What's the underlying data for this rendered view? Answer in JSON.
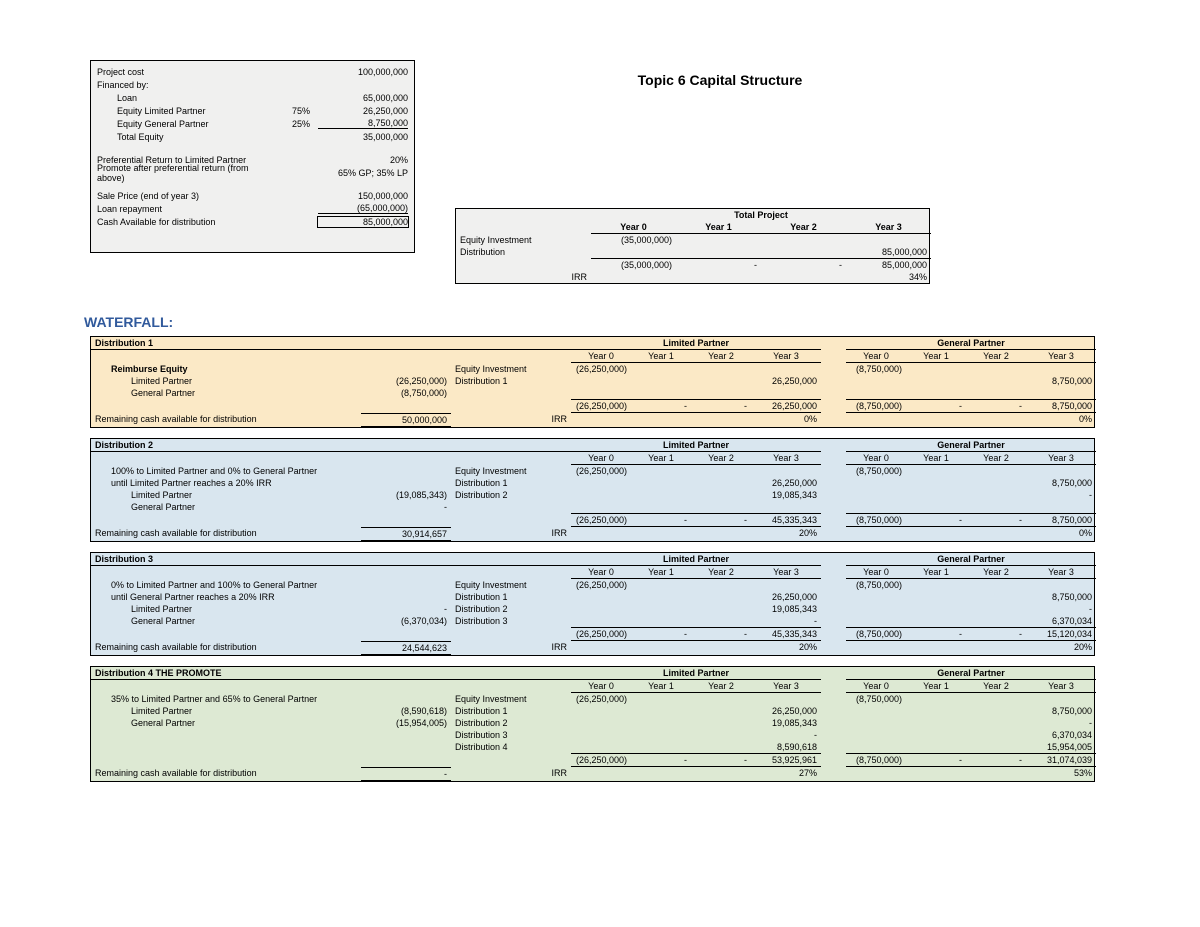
{
  "page_title": "Topic 6 Capital Structure",
  "assumptions": {
    "project_cost_label": "Project cost",
    "project_cost_value": "100,000,000",
    "financed_by_label": "Financed by:",
    "loan_label": "Loan",
    "loan_value": "65,000,000",
    "equity_lp_label": "Equity Limited Partner",
    "equity_lp_pct": "75%",
    "equity_lp_value": "26,250,000",
    "equity_gp_label": "Equity General Partner",
    "equity_gp_pct": "25%",
    "equity_gp_value": "8,750,000",
    "total_equity_label": "Total Equity",
    "total_equity_value": "35,000,000",
    "pref_return_label": "Preferential Return to Limited Partner",
    "pref_return_value": "20%",
    "promote_label": "Promote after preferential return (from above)",
    "promote_value": "65% GP; 35% LP",
    "sale_price_label": "Sale Price (end of year 3)",
    "sale_price_value": "150,000,000",
    "loan_repay_label": "Loan repayment",
    "loan_repay_value": "(65,000,000)",
    "cash_avail_label": "Cash Available for distribution",
    "cash_avail_value": "85,000,000"
  },
  "total_project": {
    "group_label": "Total Project",
    "years": [
      "Year 0",
      "Year 1",
      "Year 2",
      "Year 3"
    ],
    "equity_inv_label": "Equity Investment",
    "equity_inv_y0": "(35,000,000)",
    "dist_label": "Distribution",
    "dist_y3": "85,000,000",
    "total_y0": "(35,000,000)",
    "total_y1": "-",
    "total_y2": "-",
    "total_y3": "85,000,000",
    "irr_label": "IRR",
    "irr_value": "34%"
  },
  "waterfall_label": "WATERFALL:",
  "lp_label": "Limited Partner",
  "gp_label": "General Partner",
  "years": [
    "Year 0",
    "Year 1",
    "Year 2",
    "Year 3"
  ],
  "blocks": [
    {
      "bg": "dist-yellow",
      "title": "Distribution 1",
      "desc_rows": [
        {
          "label": "Reimburse Equity",
          "indent": 1,
          "bold": true,
          "value": ""
        },
        {
          "label": "Limited Partner",
          "indent": 2,
          "value": "(26,250,000)"
        },
        {
          "label": "General Partner",
          "indent": 2,
          "value": "(8,750,000)"
        }
      ],
      "remaining": "50,000,000",
      "right_rows": [
        [
          "Equity Investment",
          "(26,250,000)",
          "",
          "",
          "",
          "(8,750,000)",
          "",
          "",
          ""
        ],
        [
          "Distribution 1",
          "",
          "",
          "",
          "26,250,000",
          "",
          "",
          "",
          "8,750,000"
        ]
      ],
      "totals_lp": [
        "(26,250,000)",
        "-",
        "-",
        "26,250,000"
      ],
      "totals_gp": [
        "(8,750,000)",
        "-",
        "-",
        "8,750,000"
      ],
      "irr_lp": "0%",
      "irr_gp": "0%",
      "has_remaining_borders": true,
      "color": "#fbe9c6"
    },
    {
      "bg": "dist-blue",
      "title": "Distribution 2",
      "desc_rows": [
        {
          "label": "100% to Limited Partner and 0% to General Partner",
          "indent": 1,
          "value": ""
        },
        {
          "label": "until Limited Partner reaches a 20% IRR",
          "indent": 1,
          "value": ""
        },
        {
          "label": "Limited Partner",
          "indent": 2,
          "value": "(19,085,343)"
        },
        {
          "label": "General Partner",
          "indent": 2,
          "value": "-"
        }
      ],
      "remaining": "30,914,657",
      "right_rows": [
        [
          "Equity Investment",
          "(26,250,000)",
          "",
          "",
          "",
          "(8,750,000)",
          "",
          "",
          ""
        ],
        [
          "Distribution 1",
          "",
          "",
          "",
          "26,250,000",
          "",
          "",
          "",
          "8,750,000"
        ],
        [
          "Distribution 2",
          "",
          "",
          "",
          "19,085,343",
          "",
          "",
          "",
          "-"
        ]
      ],
      "totals_lp": [
        "(26,250,000)",
        "-",
        "-",
        "45,335,343"
      ],
      "totals_gp": [
        "(8,750,000)",
        "-",
        "-",
        "8,750,000"
      ],
      "irr_lp": "20%",
      "irr_gp": "0%",
      "color": "#d9e6ef"
    },
    {
      "bg": "dist-blue",
      "title": "Distribution 3",
      "desc_rows": [
        {
          "label": "0% to Limited Partner and 100% to General Partner",
          "indent": 1,
          "value": ""
        },
        {
          "label": "until General Partner reaches a 20% IRR",
          "indent": 1,
          "value": ""
        },
        {
          "label": "Limited Partner",
          "indent": 2,
          "value": "-"
        },
        {
          "label": "General Partner",
          "indent": 2,
          "value": "(6,370,034)"
        }
      ],
      "remaining": "24,544,623",
      "right_rows": [
        [
          "Equity Investment",
          "(26,250,000)",
          "",
          "",
          "",
          "(8,750,000)",
          "",
          "",
          ""
        ],
        [
          "Distribution 1",
          "",
          "",
          "",
          "26,250,000",
          "",
          "",
          "",
          "8,750,000"
        ],
        [
          "Distribution 2",
          "",
          "",
          "",
          "19,085,343",
          "",
          "",
          "",
          "-"
        ],
        [
          "Distribution 3",
          "",
          "",
          "",
          "-",
          "",
          "",
          "",
          "6,370,034"
        ]
      ],
      "totals_lp": [
        "(26,250,000)",
        "-",
        "-",
        "45,335,343"
      ],
      "totals_gp": [
        "(8,750,000)",
        "-",
        "-",
        "15,120,034"
      ],
      "irr_lp": "20%",
      "irr_gp": "20%",
      "color": "#d9e6ef"
    },
    {
      "bg": "dist-green",
      "title": "Distribution 4 THE PROMOTE",
      "desc_rows": [
        {
          "label": "35% to Limited Partner and 65% to General Partner",
          "indent": 1,
          "value": ""
        },
        {
          "label": "Limited Partner",
          "indent": 2,
          "value": "(8,590,618)"
        },
        {
          "label": "General Partner",
          "indent": 2,
          "value": "(15,954,005)"
        }
      ],
      "remaining": "-",
      "right_rows": [
        [
          "Equity Investment",
          "(26,250,000)",
          "",
          "",
          "",
          "(8,750,000)",
          "",
          "",
          ""
        ],
        [
          "Distribution 1",
          "",
          "",
          "",
          "26,250,000",
          "",
          "",
          "",
          "8,750,000"
        ],
        [
          "Distribution 2",
          "",
          "",
          "",
          "19,085,343",
          "",
          "",
          "",
          "-"
        ],
        [
          "Distribution 3",
          "",
          "",
          "",
          "-",
          "",
          "",
          "",
          "6,370,034"
        ],
        [
          "Distribution 4",
          "",
          "",
          "",
          "8,590,618",
          "",
          "",
          "",
          "15,954,005"
        ]
      ],
      "totals_lp": [
        "(26,250,000)",
        "-",
        "-",
        "53,925,961"
      ],
      "totals_gp": [
        "(8,750,000)",
        "-",
        "-",
        "31,074,039"
      ],
      "irr_lp": "27%",
      "irr_gp": "53%",
      "color": "#dde9d3"
    }
  ],
  "remaining_label": "Remaining cash available for distribution",
  "irr_label": "IRR"
}
